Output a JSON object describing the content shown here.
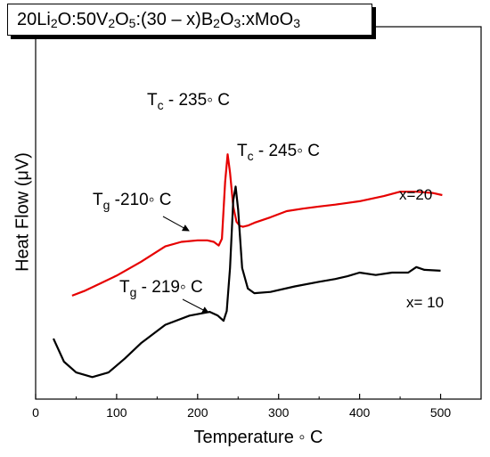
{
  "chart_data": {
    "type": "line",
    "title": {
      "prefix": "20Li",
      "parts": [
        {
          "t": "20Li"
        },
        {
          "s": "2"
        },
        {
          "t": "O:50V"
        },
        {
          "s": "2"
        },
        {
          "t": "O"
        },
        {
          "s": "5"
        },
        {
          "t": ":(30 – x)B"
        },
        {
          "s": "2"
        },
        {
          "t": "O"
        },
        {
          "s": "3"
        },
        {
          "t": ":xMoO"
        },
        {
          "s": "3"
        }
      ]
    },
    "xlabel": "Temperature ◦ C",
    "ylabel": "Heat Flow (μV)",
    "xlim": [
      0,
      550
    ],
    "ylim": [
      0,
      100
    ],
    "xticks": [
      0,
      100,
      200,
      300,
      400,
      500
    ],
    "grid": false,
    "series": [
      {
        "name": "x=20",
        "color": "#e60000",
        "x": [
          45,
          60,
          80,
          100,
          130,
          160,
          180,
          200,
          212,
          220,
          226,
          230,
          234,
          237,
          240,
          244,
          248,
          252,
          256,
          262,
          270,
          290,
          310,
          330,
          350,
          370,
          400,
          430,
          450,
          470,
          490,
          502
        ],
        "y": [
          27,
          28.5,
          31,
          33.5,
          38,
          43,
          44.5,
          45,
          45,
          44.5,
          43.3,
          45.5,
          64,
          73,
          67,
          56,
          51,
          49.7,
          49.4,
          49.8,
          50.7,
          52.5,
          54.5,
          55.3,
          56,
          56.6,
          57.7,
          59.4,
          60.8,
          60.8,
          60.4,
          59.7
        ]
      },
      {
        "name": "x= 10",
        "color": "#000000",
        "x": [
          22,
          35,
          50,
          70,
          90,
          110,
          130,
          160,
          190,
          215,
          225,
          232,
          236,
          240,
          244,
          247,
          250,
          255,
          262,
          270,
          290,
          320,
          350,
          370,
          385,
          400,
          420,
          440,
          460,
          470,
          480,
          500
        ],
        "y": [
          13,
          5.5,
          2,
          0.5,
          2,
          6.5,
          11.5,
          17.5,
          20.5,
          21.7,
          20.5,
          18.8,
          22,
          36,
          58,
          62.5,
          55,
          36,
          29.3,
          27.8,
          28.2,
          30,
          31.5,
          32.4,
          33.3,
          34.5,
          33.7,
          34.5,
          34.5,
          36.3,
          35.4,
          35.1
        ]
      }
    ],
    "annotations": [
      {
        "main": "T",
        "sub": "c",
        "rest": " - 235◦ C"
      },
      {
        "main": "T",
        "sub": "c",
        "rest": " - 245◦ C"
      },
      {
        "main": "T",
        "sub": "g",
        "rest": " -210◦ C"
      },
      {
        "main": "T",
        "sub": "g",
        "rest": " - 219◦ C"
      }
    ],
    "series_labels": [
      "x=20",
      "x= 10"
    ]
  }
}
